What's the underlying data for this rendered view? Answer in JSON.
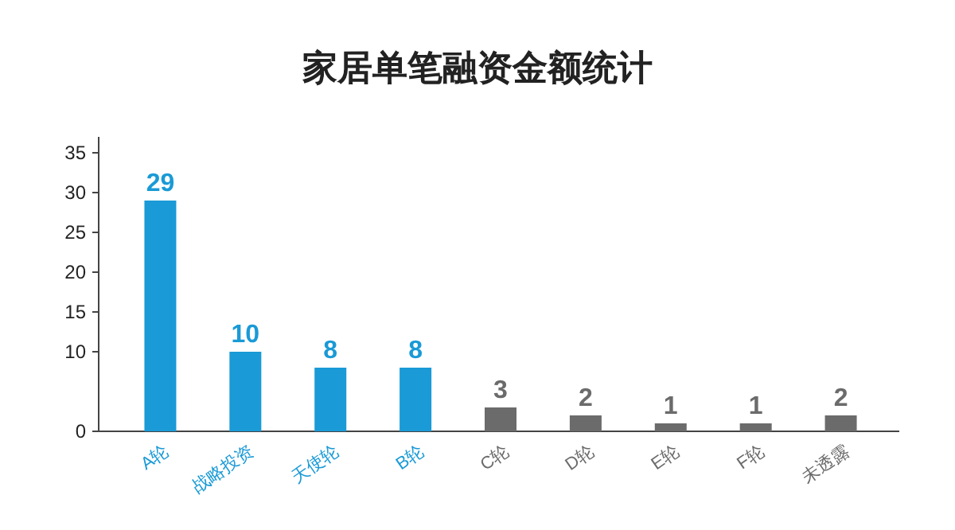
{
  "chart_data": {
    "type": "bar",
    "title": "家居单笔融资金额统计",
    "categories": [
      "A轮",
      "战略投资",
      "天使轮",
      "B轮",
      "C轮",
      "D轮",
      "E轮",
      "F轮",
      "未透露"
    ],
    "values": [
      29,
      10,
      8,
      8,
      3,
      2,
      1,
      1,
      2
    ],
    "colors": [
      "#1a9ad6",
      "#1a9ad6",
      "#1a9ad6",
      "#1a9ad6",
      "#6b6b6b",
      "#6b6b6b",
      "#6b6b6b",
      "#6b6b6b",
      "#6b6b6b"
    ],
    "ylim": [
      0,
      37
    ],
    "yticks": [
      0,
      10,
      15,
      20,
      25,
      30,
      35
    ],
    "data_labels": true
  }
}
